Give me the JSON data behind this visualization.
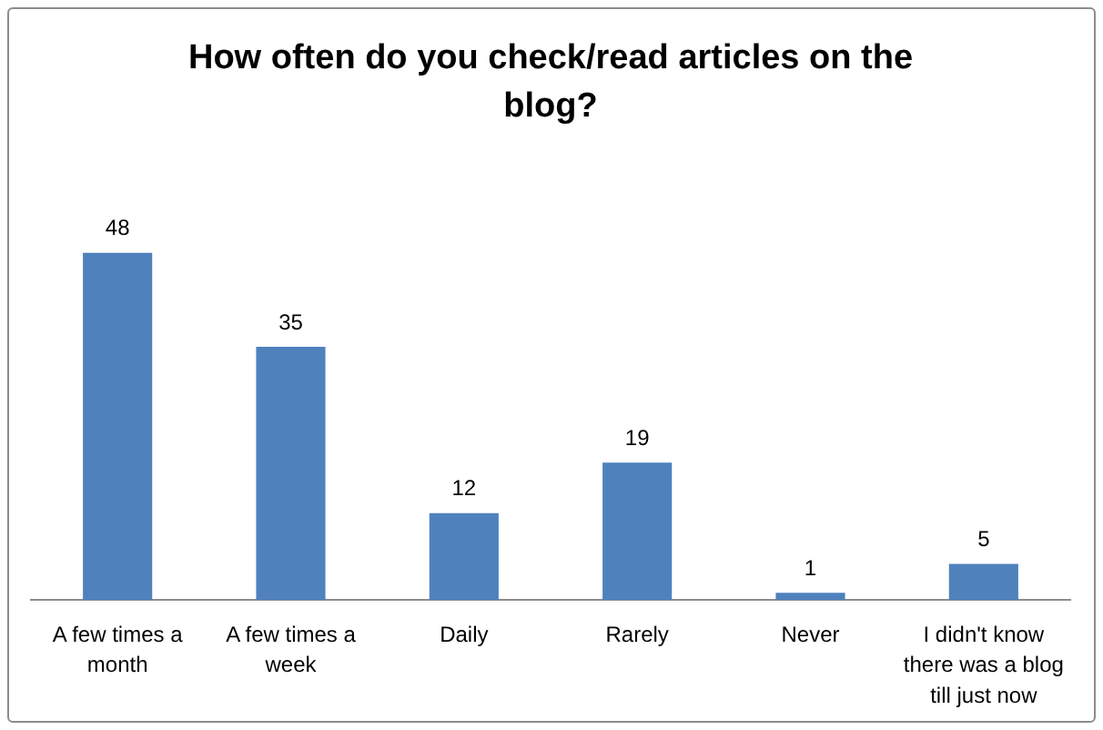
{
  "chart_data": {
    "type": "bar",
    "title": "How often do you check/read articles on the blog?",
    "categories": [
      "A few times a month",
      "A few times a week",
      "Daily",
      "Rarely",
      "Never",
      "I didn't know there was a blog till just now"
    ],
    "values": [
      48,
      35,
      12,
      19,
      1,
      5
    ],
    "color": "#4f81bd",
    "data_labels": true
  }
}
